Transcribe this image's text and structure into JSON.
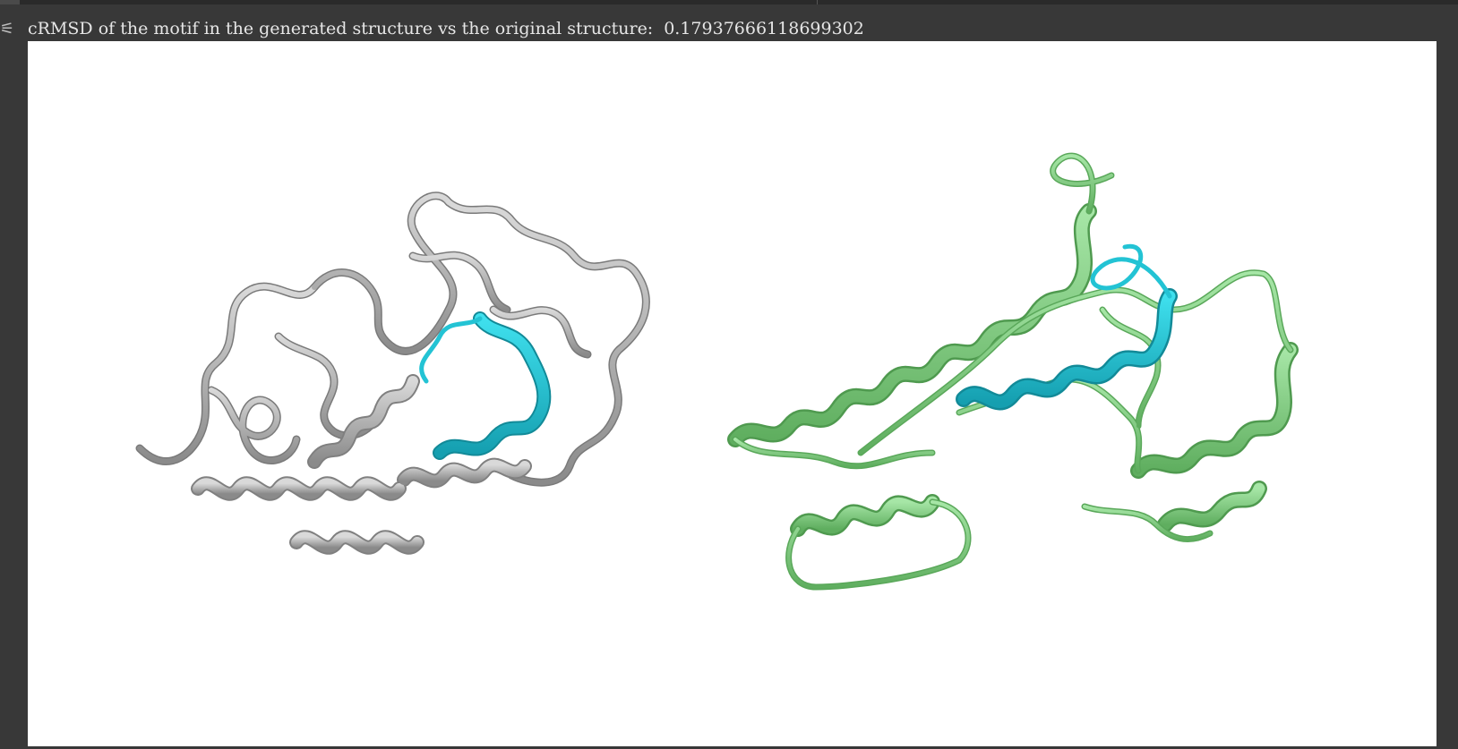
{
  "output": {
    "label": "cRMSD of the motif in the generated structure vs the original structure:",
    "value": "0.17937666118699302"
  },
  "viewer": {
    "structures": [
      {
        "name": "original structure",
        "color": "#b5b5b5",
        "motif_color": "#23c3d4"
      },
      {
        "name": "generated structure",
        "color": "#8fd48f",
        "motif_color": "#23c3d4"
      }
    ]
  },
  "icons": {
    "gutter": "output-indicator-icon"
  }
}
